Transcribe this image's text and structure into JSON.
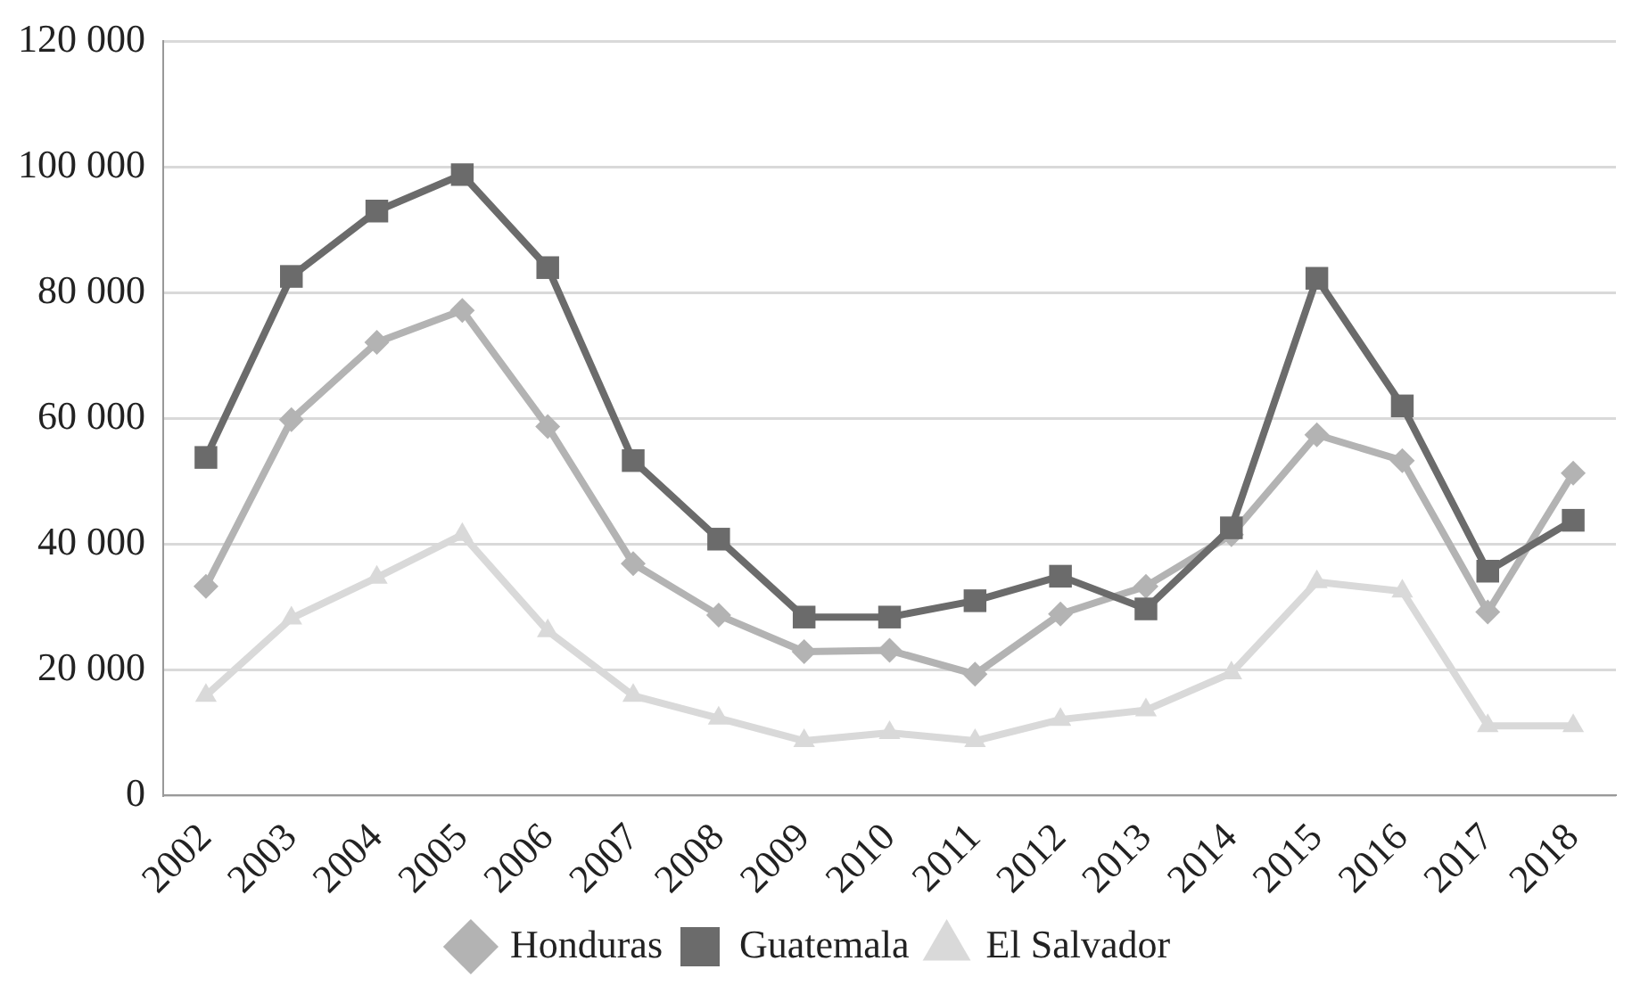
{
  "chart_data": {
    "type": "line",
    "categories": [
      "2002",
      "2003",
      "2004",
      "2005",
      "2006",
      "2007",
      "2008",
      "2009",
      "2010",
      "2011",
      "2012",
      "2013",
      "2014",
      "2015",
      "2016",
      "2017",
      "2018"
    ],
    "series": [
      {
        "name": "Honduras",
        "color": "#b3b3b3",
        "marker": "diamond",
        "values": [
          33300,
          59800,
          72100,
          77200,
          58700,
          36900,
          28700,
          22900,
          23100,
          19300,
          28900,
          33300,
          41500,
          57400,
          53300,
          29200,
          51300
        ]
      },
      {
        "name": "Guatemala",
        "color": "#6b6b6b",
        "marker": "square",
        "values": [
          53800,
          82600,
          93000,
          98800,
          84000,
          53300,
          40800,
          28400,
          28400,
          31000,
          34900,
          29700,
          42600,
          82300,
          62000,
          35700,
          43800
        ]
      },
      {
        "name": "El Salvador",
        "color": "#d9d9d9",
        "marker": "triangle",
        "values": [
          15900,
          28200,
          34700,
          41500,
          26200,
          15900,
          12300,
          8700,
          10000,
          8700,
          12100,
          13600,
          19500,
          34000,
          32500,
          11100,
          11100
        ]
      }
    ],
    "ylim": [
      0,
      120000
    ],
    "yticks": [
      0,
      {
        "value": 20000,
        "label": "20 000"
      },
      {
        "value": 40000,
        "label": "40 000"
      },
      {
        "value": 60000,
        "label": "60 000"
      },
      {
        "value": 80000,
        "label": "80 000"
      },
      {
        "value": 100000,
        "label": "100 000"
      },
      {
        "value": 120000,
        "label": "120 000"
      }
    ],
    "grid": "y",
    "legend": "bottom",
    "line_style": "solid"
  }
}
